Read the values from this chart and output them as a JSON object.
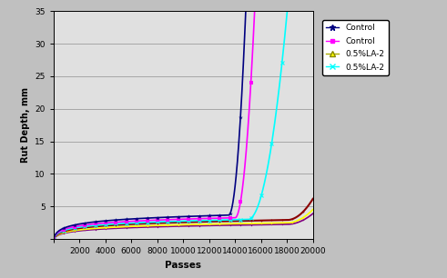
{
  "xlabel": "Passes",
  "ylabel": "Rut Depth, mm",
  "xlim": [
    0,
    20000
  ],
  "ylim": [
    0,
    35
  ],
  "xticks": [
    0,
    2000,
    4000,
    6000,
    8000,
    10000,
    12000,
    14000,
    16000,
    18000,
    20000
  ],
  "yticks": [
    0,
    5,
    10,
    15,
    20,
    25,
    30,
    35
  ],
  "legend_labels": [
    "Control",
    "Control",
    "0.5%LA-2",
    "0.5%LA-2"
  ],
  "line_colors": [
    "#000080",
    "#ff00ff",
    "#ffff00",
    "#00ffff"
  ],
  "dark_red": "#8b0000",
  "purple": "#800080",
  "background_color": "#c0c0c0",
  "plot_bg_color": "#e0e0e0",
  "grid_color": "#a0a0a0"
}
